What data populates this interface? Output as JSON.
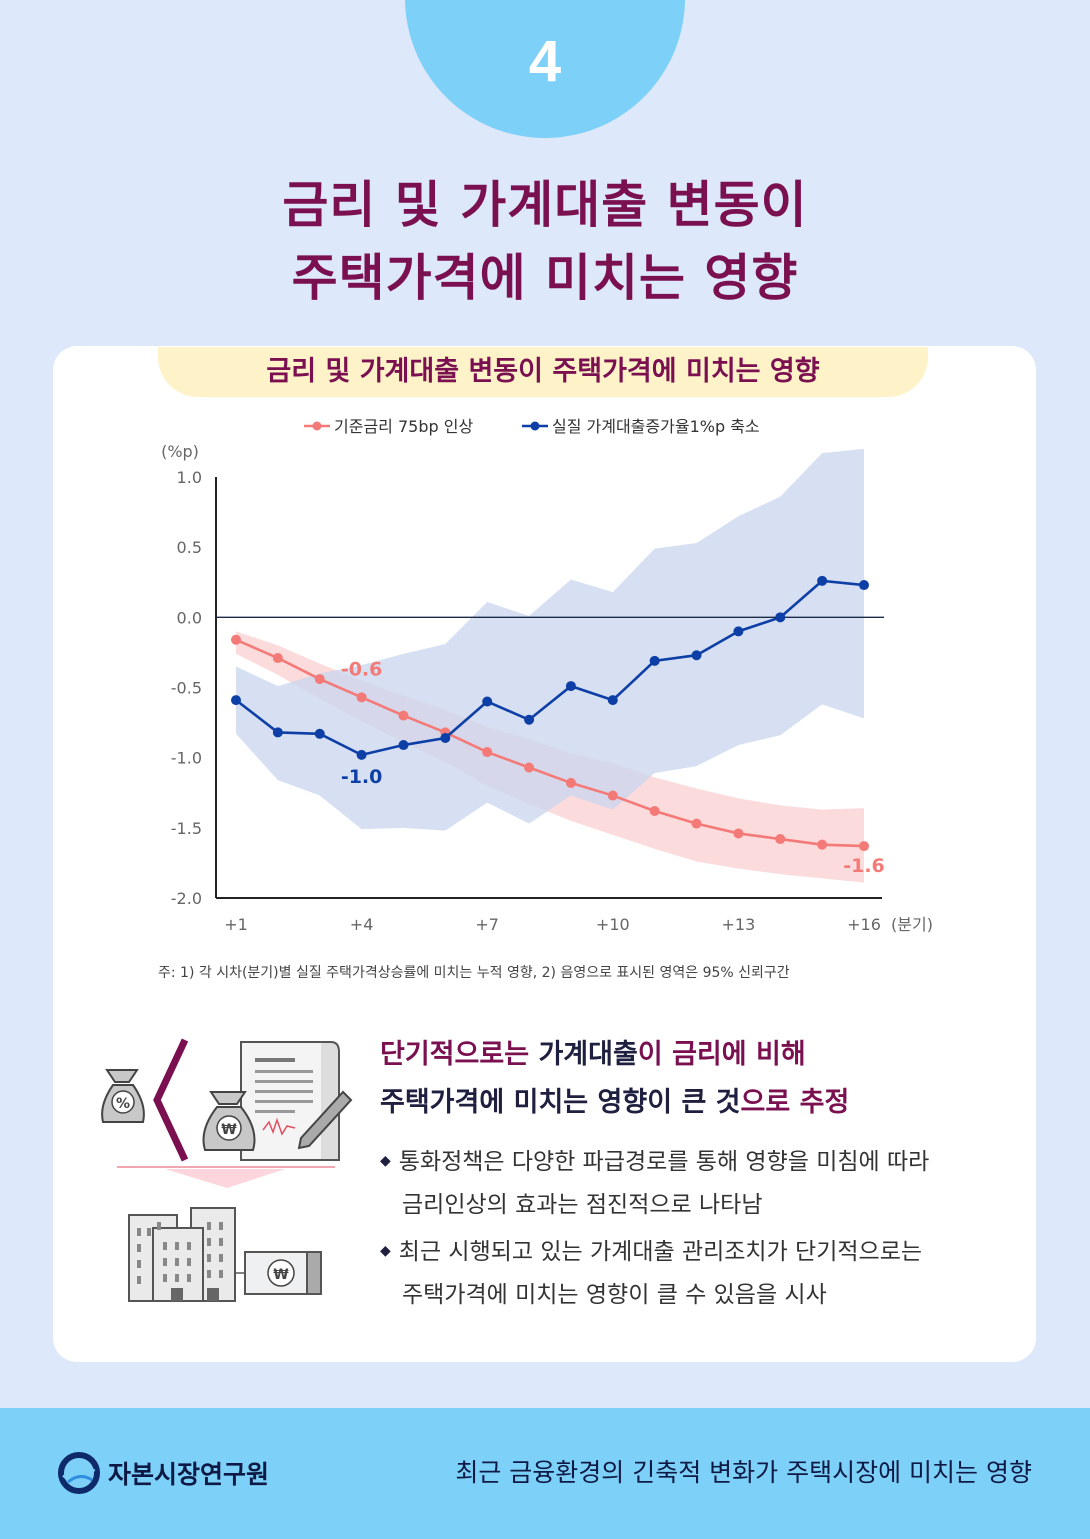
{
  "badge": {
    "number": "4"
  },
  "title": {
    "line1": "금리 및 가계대출 변동이",
    "line2": "주택가격에 미치는 영향"
  },
  "chart_title": "금리 및 가계대출 변동이 주택가격에 미치는 영향",
  "chart_data": {
    "type": "line",
    "unit_label": "(%p)",
    "x_unit": "(분기)",
    "x": [
      1,
      2,
      3,
      4,
      5,
      6,
      7,
      8,
      9,
      10,
      11,
      12,
      13,
      14,
      15,
      16
    ],
    "x_ticks": [
      "+1",
      "+4",
      "+7",
      "+10",
      "+13",
      "+16"
    ],
    "y_ticks": [
      "1.0",
      "0.5",
      "0.0",
      "-0.5",
      "-1.0",
      "-1.5",
      "-2.0"
    ],
    "ylim": [
      -2.0,
      1.0
    ],
    "series": [
      {
        "name": "기준금리 75bp 인상",
        "color": "#f47a78",
        "band_color": "#fbd2d4",
        "values": [
          -0.16,
          -0.29,
          -0.44,
          -0.57,
          -0.7,
          -0.82,
          -0.96,
          -1.07,
          -1.18,
          -1.27,
          -1.38,
          -1.47,
          -1.54,
          -1.58,
          -1.62,
          -1.63
        ],
        "lower": [
          -0.26,
          -0.41,
          -0.58,
          -0.74,
          -0.89,
          -1.03,
          -1.2,
          -1.33,
          -1.45,
          -1.55,
          -1.65,
          -1.74,
          -1.79,
          -1.83,
          -1.86,
          -1.89
        ],
        "upper": [
          -0.1,
          -0.2,
          -0.33,
          -0.45,
          -0.56,
          -0.66,
          -0.78,
          -0.87,
          -0.97,
          -1.04,
          -1.14,
          -1.22,
          -1.29,
          -1.34,
          -1.37,
          -1.36
        ]
      },
      {
        "name": "실질 가계대출증가율1%p 축소",
        "color": "#0d3fa6",
        "band_color": "#c9d6ee",
        "values": [
          -0.59,
          -0.82,
          -0.83,
          -0.98,
          -0.91,
          -0.86,
          -0.6,
          -0.73,
          -0.49,
          -0.59,
          -0.31,
          -0.27,
          -0.1,
          0.0,
          0.26,
          0.23
        ],
        "lower": [
          -0.83,
          -1.16,
          -1.27,
          -1.51,
          -1.5,
          -1.52,
          -1.32,
          -1.47,
          -1.27,
          -1.37,
          -1.11,
          -1.06,
          -0.91,
          -0.84,
          -0.62,
          -0.72
        ],
        "upper": [
          -0.35,
          -0.49,
          -0.4,
          -0.34,
          -0.26,
          -0.19,
          0.11,
          0.01,
          0.27,
          0.18,
          0.49,
          0.53,
          0.72,
          0.86,
          1.17,
          1.2
        ]
      }
    ],
    "annotations": [
      {
        "text": "-0.6",
        "series": 0,
        "x": 4
      },
      {
        "text": "-1.6",
        "series": 0,
        "x": 16
      },
      {
        "text": "-1.0",
        "series": 1,
        "x": 4
      }
    ],
    "reference_line": 0.0,
    "note": "주: 1) 각 시차(분기)별 실질 주택가격상승률에 미치는 누적 영향, 2) 음영으로 표시된 영역은 95% 신뢰구간"
  },
  "summary": {
    "headline1_a": "단기적으로는 ",
    "headline1_b": "가계대출",
    "headline1_c": "이 금리에 비해",
    "headline2_a": "주택가격에 미치는 영향이 큰 것",
    "headline2_b": "으로 추정",
    "bullets": [
      [
        "통화정책은 다양한 파급경로를 통해 영향을 미침에 따라",
        "금리인상의 효과는 점진적으로 나타남"
      ],
      [
        "최근 시행되고 있는 가계대출 관리조치가 단기적으로는",
        "주택가격에 미치는 영향이 클 수 있음을 시사"
      ]
    ]
  },
  "icons": {
    "percent_bag": "%",
    "won_bag": "₩",
    "won_bill": "₩"
  },
  "footer": {
    "logo_text": "자본시장연구원",
    "report_title": "최근 금융환경의 긴축적 변화가 주택시장에 미치는 영향"
  }
}
